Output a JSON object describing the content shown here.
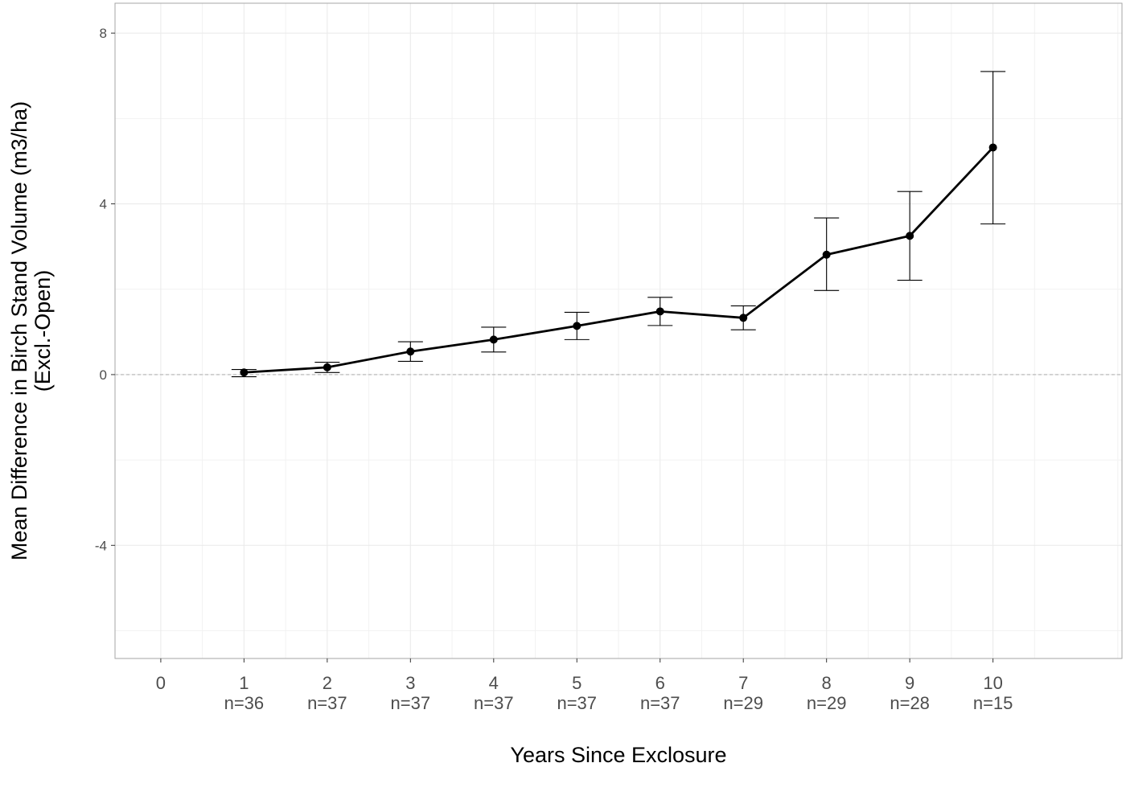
{
  "chart_data": {
    "type": "line",
    "xlabel": "Years Since Exclosure",
    "ylabel_lines": [
      "Mean Difference in Birch Stand Volume (m3/ha)",
      "(Excl.-Open)"
    ],
    "x_ticks": [
      {
        "value": 0,
        "label": "0",
        "sublabel": ""
      },
      {
        "value": 1,
        "label": "1",
        "sublabel": "n=36"
      },
      {
        "value": 2,
        "label": "2",
        "sublabel": "n=37"
      },
      {
        "value": 3,
        "label": "3",
        "sublabel": "n=37"
      },
      {
        "value": 4,
        "label": "4",
        "sublabel": "n=37"
      },
      {
        "value": 5,
        "label": "5",
        "sublabel": "n=37"
      },
      {
        "value": 6,
        "label": "6",
        "sublabel": "n=37"
      },
      {
        "value": 7,
        "label": "7",
        "sublabel": "n=29"
      },
      {
        "value": 8,
        "label": "8",
        "sublabel": "n=29"
      },
      {
        "value": 9,
        "label": "9",
        "sublabel": "n=28"
      },
      {
        "value": 10,
        "label": "10",
        "sublabel": "n=15"
      }
    ],
    "y_ticks": [
      {
        "value": 8,
        "label": "8"
      },
      {
        "value": 4,
        "label": "4"
      },
      {
        "value": 0,
        "label": "0"
      },
      {
        "value": -4,
        "label": "-4"
      }
    ],
    "xlim": [
      -0.55,
      11.55
    ],
    "ylim": [
      -6.65,
      8.7
    ],
    "reference_line_y": 0,
    "grid": true,
    "series": [
      {
        "color": "#000000",
        "points": [
          {
            "x": 1,
            "y": 0.05,
            "lower": -0.05,
            "upper": 0.12
          },
          {
            "x": 2,
            "y": 0.17,
            "lower": 0.05,
            "upper": 0.29
          },
          {
            "x": 3,
            "y": 0.54,
            "lower": 0.31,
            "upper": 0.77
          },
          {
            "x": 4,
            "y": 0.82,
            "lower": 0.53,
            "upper": 1.11
          },
          {
            "x": 5,
            "y": 1.14,
            "lower": 0.82,
            "upper": 1.46
          },
          {
            "x": 6,
            "y": 1.48,
            "lower": 1.15,
            "upper": 1.81
          },
          {
            "x": 7,
            "y": 1.33,
            "lower": 1.05,
            "upper": 1.61
          },
          {
            "x": 8,
            "y": 2.81,
            "lower": 1.97,
            "upper": 3.67
          },
          {
            "x": 9,
            "y": 3.25,
            "lower": 2.21,
            "upper": 4.29
          },
          {
            "x": 10,
            "y": 5.32,
            "lower": 3.53,
            "upper": 7.1
          }
        ]
      }
    ]
  }
}
